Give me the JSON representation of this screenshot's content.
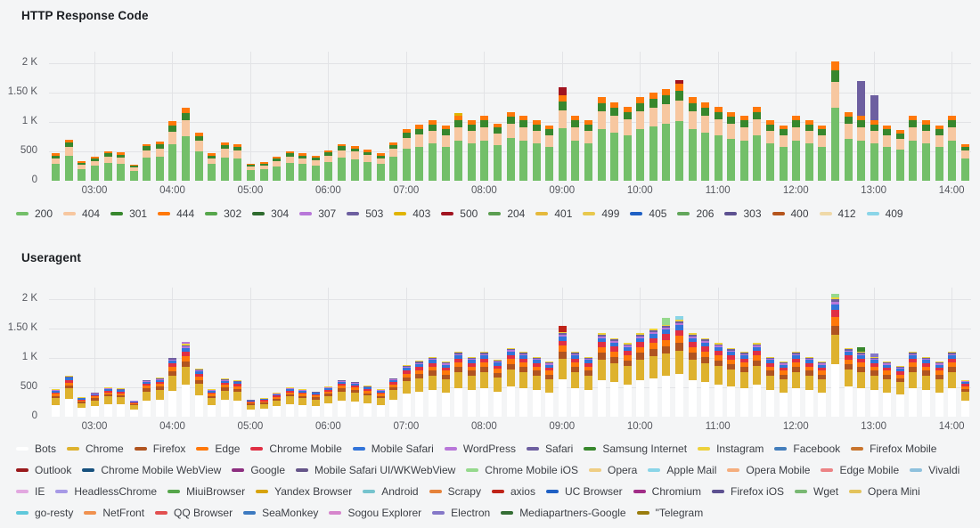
{
  "panels": [
    {
      "title": "HTTP Response Code"
    },
    {
      "title": "Useragent"
    }
  ],
  "chart_data": [
    {
      "type": "bar",
      "stacked": true,
      "title": "HTTP Response Code",
      "grid": true,
      "legend_position": "bottom",
      "axis": {
        "start": "02:25",
        "end": "14:15",
        "ymax": 2200
      },
      "yticks": [
        {
          "v": 0,
          "label": "0"
        },
        {
          "v": 500,
          "label": "500"
        },
        {
          "v": 1000,
          "label": "1 K"
        },
        {
          "v": 1500,
          "label": "1.50 K"
        },
        {
          "v": 2000,
          "label": "2 K"
        }
      ],
      "xticks": [
        "03:00",
        "04:00",
        "05:00",
        "06:00",
        "07:00",
        "08:00",
        "09:00",
        "10:00",
        "11:00",
        "12:00",
        "13:00",
        "14:00"
      ],
      "x": [
        "02:30",
        "02:40",
        "02:50",
        "03:00",
        "03:10",
        "03:20",
        "03:30",
        "03:40",
        "03:50",
        "04:00",
        "04:10",
        "04:20",
        "04:30",
        "04:40",
        "04:50",
        "05:00",
        "05:10",
        "05:20",
        "05:30",
        "05:40",
        "05:50",
        "06:00",
        "06:10",
        "06:20",
        "06:30",
        "06:40",
        "06:50",
        "07:00",
        "07:10",
        "07:20",
        "07:30",
        "07:40",
        "07:50",
        "08:00",
        "08:10",
        "08:20",
        "08:30",
        "08:40",
        "08:50",
        "09:00",
        "09:10",
        "09:20",
        "09:30",
        "09:40",
        "09:50",
        "10:00",
        "10:10",
        "10:20",
        "10:30",
        "10:40",
        "10:50",
        "11:00",
        "11:10",
        "11:20",
        "11:30",
        "11:40",
        "11:50",
        "12:00",
        "12:10",
        "12:20",
        "12:30",
        "12:40",
        "12:50",
        "13:00",
        "13:10",
        "13:20",
        "13:30",
        "13:40",
        "13:50",
        "14:00",
        "14:10"
      ],
      "totals": [
        465,
        700,
        330,
        410,
        500,
        480,
        280,
        630,
        665,
        1010,
        1240,
        815,
        465,
        650,
        620,
        290,
        315,
        405,
        500,
        465,
        430,
        515,
        630,
        595,
        525,
        465,
        660,
        880,
        950,
        1025,
        940,
        1105,
        1025,
        1105,
        975,
        1175,
        1105,
        1025,
        940,
        1450,
        1105,
        1025,
        1420,
        1335,
        1255,
        1420,
        1500,
        1570,
        1650,
        1420,
        1335,
        1255,
        1170,
        1105,
        1255,
        1025,
        940,
        1105,
        1025,
        940,
        2030,
        1170,
        1105,
        1025,
        940,
        860,
        1105,
        1025,
        940,
        1105,
        625
      ],
      "stack": [
        {
          "series": "200",
          "frac": 0.615
        },
        {
          "series": "404",
          "frac": 0.215
        },
        {
          "series": "301",
          "frac": 0.1
        },
        {
          "series": "444",
          "frac": 0.07
        }
      ],
      "events": [
        {
          "x": "09:00",
          "series": "500",
          "value": 150
        },
        {
          "x": "07:40",
          "series": "403",
          "value": 50
        },
        {
          "x": "10:30",
          "series": "500",
          "value": 60
        },
        {
          "x": "12:50",
          "series": "503",
          "value": 600
        },
        {
          "x": "13:00",
          "series": "503",
          "value": 430
        }
      ],
      "legend": [
        {
          "label": "200",
          "color": "#73BF69"
        },
        {
          "label": "404",
          "color": "#F7C7A0"
        },
        {
          "label": "301",
          "color": "#37872D"
        },
        {
          "label": "444",
          "color": "#FF780A"
        },
        {
          "label": "302",
          "color": "#56A64B"
        },
        {
          "label": "304",
          "color": "#2E6B2E"
        },
        {
          "label": "307",
          "color": "#B877D9"
        },
        {
          "label": "503",
          "color": "#6D5FA0"
        },
        {
          "label": "403",
          "color": "#E0B400"
        },
        {
          "label": "500",
          "color": "#A11420"
        },
        {
          "label": "204",
          "color": "#5B9E51"
        },
        {
          "label": "401",
          "color": "#E5B93C"
        },
        {
          "label": "499",
          "color": "#E8C84D"
        },
        {
          "label": "405",
          "color": "#1F60C4"
        },
        {
          "label": "206",
          "color": "#62A65B"
        },
        {
          "label": "303",
          "color": "#5D5191"
        },
        {
          "label": "400",
          "color": "#B5551D"
        },
        {
          "label": "412",
          "color": "#EFD9A8"
        },
        {
          "label": "409",
          "color": "#8AD5E8"
        }
      ]
    },
    {
      "type": "bar",
      "stacked": true,
      "title": "Useragent",
      "grid": true,
      "legend_position": "bottom",
      "axis": {
        "start": "02:25",
        "end": "14:15",
        "ymax": 2200
      },
      "yticks": [
        {
          "v": 0,
          "label": "0"
        },
        {
          "v": 500,
          "label": "500"
        },
        {
          "v": 1000,
          "label": "1 K"
        },
        {
          "v": 1500,
          "label": "1.50 K"
        },
        {
          "v": 2000,
          "label": "2 K"
        }
      ],
      "xticks": [
        "03:00",
        "04:00",
        "05:00",
        "06:00",
        "07:00",
        "08:00",
        "09:00",
        "10:00",
        "11:00",
        "12:00",
        "13:00",
        "14:00"
      ],
      "x": [
        "02:30",
        "02:40",
        "02:50",
        "03:00",
        "03:10",
        "03:20",
        "03:30",
        "03:40",
        "03:50",
        "04:00",
        "04:10",
        "04:20",
        "04:30",
        "04:40",
        "04:50",
        "05:00",
        "05:10",
        "05:20",
        "05:30",
        "05:40",
        "05:50",
        "06:00",
        "06:10",
        "06:20",
        "06:30",
        "06:40",
        "06:50",
        "07:00",
        "07:10",
        "07:20",
        "07:30",
        "07:40",
        "07:50",
        "08:00",
        "08:10",
        "08:20",
        "08:30",
        "08:40",
        "08:50",
        "09:00",
        "09:10",
        "09:20",
        "09:30",
        "09:40",
        "09:50",
        "10:00",
        "10:10",
        "10:20",
        "10:30",
        "10:40",
        "10:50",
        "11:00",
        "11:10",
        "11:20",
        "11:30",
        "11:40",
        "11:50",
        "12:00",
        "12:10",
        "12:20",
        "12:30",
        "12:40",
        "12:50",
        "13:00",
        "13:10",
        "13:20",
        "13:30",
        "13:40",
        "13:50",
        "14:00",
        "14:10"
      ],
      "totals": [
        465,
        700,
        330,
        410,
        500,
        480,
        280,
        630,
        665,
        1010,
        1240,
        815,
        465,
        650,
        620,
        290,
        315,
        405,
        500,
        465,
        430,
        515,
        630,
        595,
        525,
        465,
        660,
        880,
        950,
        1025,
        940,
        1105,
        1025,
        1105,
        975,
        1175,
        1105,
        1025,
        940,
        1450,
        1105,
        1025,
        1420,
        1335,
        1255,
        1420,
        1500,
        1570,
        1650,
        1420,
        1335,
        1255,
        1170,
        1105,
        1255,
        1025,
        940,
        1105,
        1025,
        940,
        2030,
        1170,
        1105,
        1025,
        940,
        860,
        1105,
        1025,
        940,
        1105,
        625
      ],
      "stack": [
        {
          "series": "Bots",
          "frac": 0.44
        },
        {
          "series": "Chrome",
          "frac": 0.245
        },
        {
          "series": "Firefox",
          "frac": 0.08
        },
        {
          "series": "Edge",
          "frac": 0.07
        },
        {
          "series": "Chrome Mobile",
          "frac": 0.06
        },
        {
          "series": "Mobile Safari",
          "frac": 0.05
        },
        {
          "series": "WordPress",
          "frac": 0.02
        },
        {
          "series": "Safari",
          "frac": 0.02
        },
        {
          "series": "Instagram",
          "frac": 0.015
        }
      ],
      "events": [
        {
          "x": "04:10",
          "series": "WordPress",
          "value": 40
        },
        {
          "x": "09:00",
          "series": "axios",
          "value": 100
        },
        {
          "x": "10:20",
          "series": "Chrome Mobile iOS",
          "value": 120
        },
        {
          "x": "10:30",
          "series": "Apple Mail",
          "value": 60
        },
        {
          "x": "12:30",
          "series": "Chrome Mobile iOS",
          "value": 70
        },
        {
          "x": "12:50",
          "series": "Samsung Internet",
          "value": 80
        },
        {
          "x": "13:00",
          "series": "Electron",
          "value": 60
        }
      ],
      "legend": [
        {
          "label": "Bots",
          "color": "#FFFFFF"
        },
        {
          "label": "Chrome",
          "color": "#DEB22E"
        },
        {
          "label": "Firefox",
          "color": "#B05420"
        },
        {
          "label": "Edge",
          "color": "#FF780A"
        },
        {
          "label": "Chrome Mobile",
          "color": "#E02F44"
        },
        {
          "label": "Mobile Safari",
          "color": "#3274D9"
        },
        {
          "label": "WordPress",
          "color": "#B877D9"
        },
        {
          "label": "Safari",
          "color": "#6D5FA0"
        },
        {
          "label": "Samsung Internet",
          "color": "#37872D"
        },
        {
          "label": "Instagram",
          "color": "#EDD13C"
        },
        {
          "label": "Facebook",
          "color": "#447EBC"
        },
        {
          "label": "Firefox Mobile",
          "color": "#C9752E"
        },
        {
          "label": "Outlook",
          "color": "#99191C"
        },
        {
          "label": "Chrome Mobile WebView",
          "color": "#17517E"
        },
        {
          "label": "Google",
          "color": "#8D2F80"
        },
        {
          "label": "Mobile Safari UI/WKWebView",
          "color": "#655589"
        },
        {
          "label": "Chrome Mobile iOS",
          "color": "#96D98D"
        },
        {
          "label": "Opera",
          "color": "#EFCE84"
        },
        {
          "label": "Apple Mail",
          "color": "#8AD5E8"
        },
        {
          "label": "Opera Mobile",
          "color": "#F5AE7E"
        },
        {
          "label": "Edge Mobile",
          "color": "#EC8385"
        },
        {
          "label": "Vivaldi",
          "color": "#8EC1DD"
        },
        {
          "label": "IE",
          "color": "#E2A8E0"
        },
        {
          "label": "HeadlessChrome",
          "color": "#A79AE6"
        },
        {
          "label": "MiuiBrowser",
          "color": "#56A64B"
        },
        {
          "label": "Yandex Browser",
          "color": "#D7A30C"
        },
        {
          "label": "Android",
          "color": "#76C4CE"
        },
        {
          "label": "Scrapy",
          "color": "#E5823B"
        },
        {
          "label": "axios",
          "color": "#BF2318"
        },
        {
          "label": "UC Browser",
          "color": "#1F60C4"
        },
        {
          "label": "Chromium",
          "color": "#A12D87"
        },
        {
          "label": "Firefox iOS",
          "color": "#5D5191"
        },
        {
          "label": "Wget",
          "color": "#79B873"
        },
        {
          "label": "Opera Mini",
          "color": "#E3C35C"
        },
        {
          "label": "go-resty",
          "color": "#5FC8DB"
        },
        {
          "label": "NetFront",
          "color": "#F0914F"
        },
        {
          "label": "QQ Browser",
          "color": "#E25050"
        },
        {
          "label": "SeaMonkey",
          "color": "#3D7AC0"
        },
        {
          "label": "Sogou Explorer",
          "color": "#D685CC"
        },
        {
          "label": "Electron",
          "color": "#8578C8"
        },
        {
          "label": "Mediapartners-Google",
          "color": "#356E35"
        },
        {
          "label": "\"Telegram",
          "color": "#9A7D0E"
        }
      ]
    }
  ]
}
